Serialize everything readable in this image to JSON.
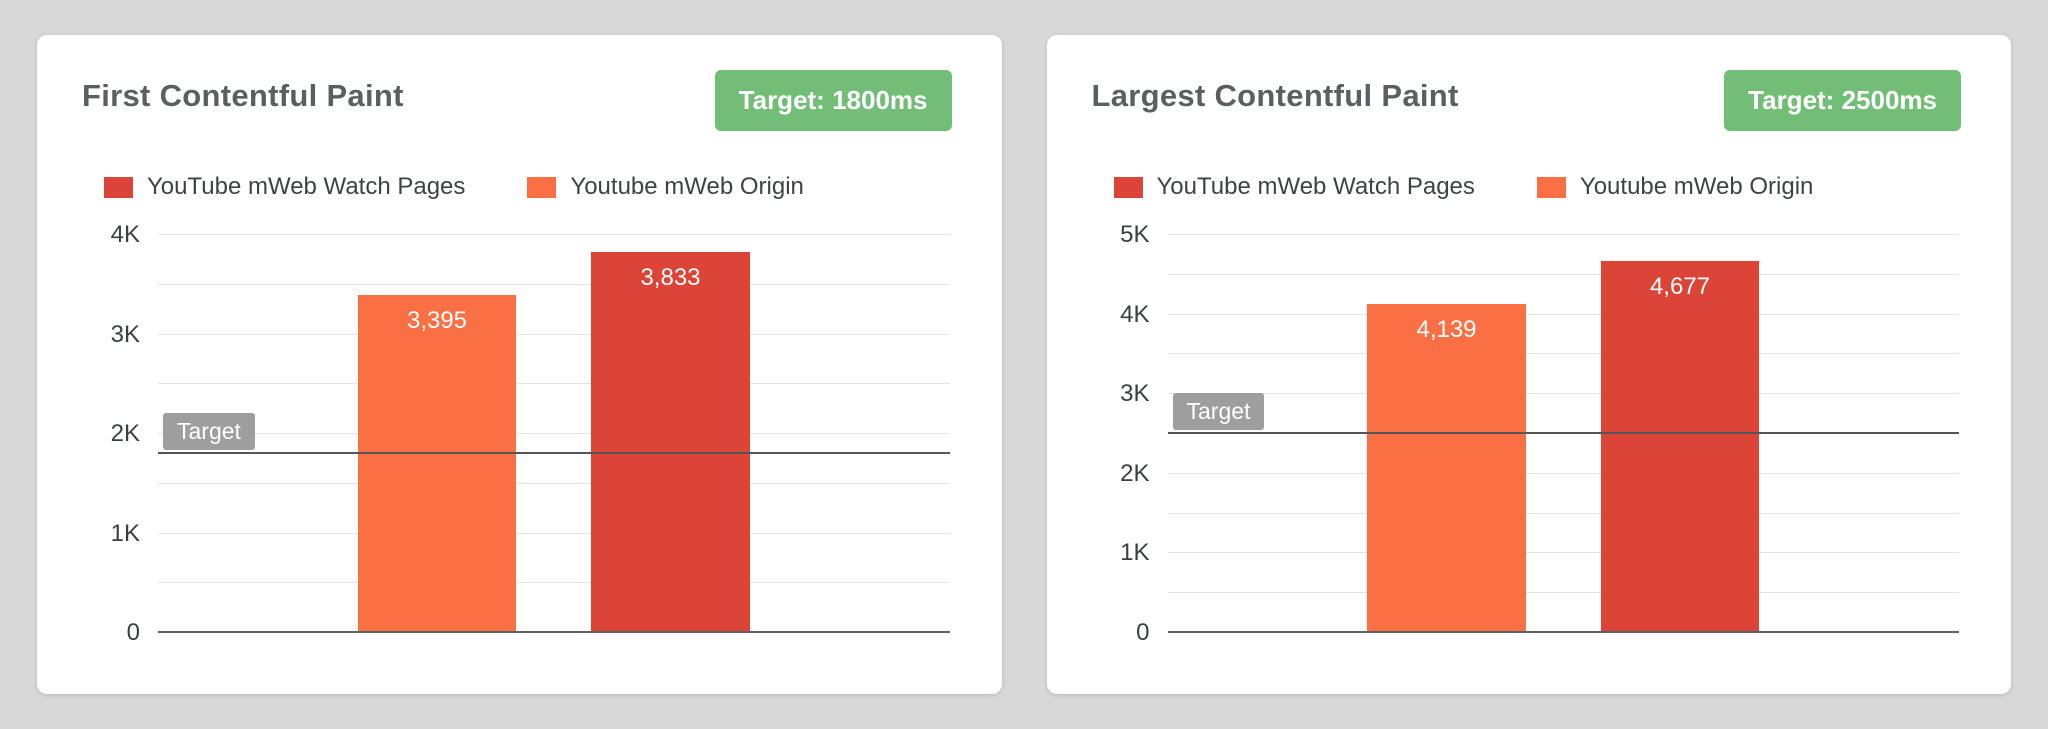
{
  "page": {
    "background": "#d8d8d8"
  },
  "colors": {
    "target_badge_bg": "#72be76",
    "target_badge_text": "#ffffff",
    "target_marker_bg": "#9e9e9e",
    "target_line": "#555555",
    "gridline": "#e3e3e3",
    "baseline": "#616161",
    "series_red": "#db4437",
    "series_orange": "#fa7044"
  },
  "chart_data": [
    {
      "type": "bar",
      "title": "First Contentful Paint",
      "target_badge": "Target: 1800ms",
      "target_line": {
        "value": 1800,
        "label": "Target"
      },
      "legend": [
        {
          "name": "YouTube mWeb Watch Pages",
          "color": "#db4437"
        },
        {
          "name": "Youtube mWeb Origin",
          "color": "#fa7044"
        }
      ],
      "bars": [
        {
          "series": "Youtube mWeb Origin",
          "value": 3395,
          "label": "3,395",
          "color": "#fa7044"
        },
        {
          "series": "YouTube mWeb Watch Pages",
          "value": 3833,
          "label": "3,833",
          "color": "#db4437"
        }
      ],
      "xlabel": "",
      "ylabel": "",
      "ylim": [
        0,
        4000
      ],
      "minor_grid_step": 500,
      "yticks": [
        {
          "value": 0,
          "label": "0"
        },
        {
          "value": 1000,
          "label": "1K"
        },
        {
          "value": 2000,
          "label": "2K"
        },
        {
          "value": 3000,
          "label": "3K"
        },
        {
          "value": 4000,
          "label": "4K"
        }
      ]
    },
    {
      "type": "bar",
      "title": "Largest Contentful Paint",
      "target_badge": "Target: 2500ms",
      "target_line": {
        "value": 2500,
        "label": "Target"
      },
      "legend": [
        {
          "name": "YouTube mWeb Watch Pages",
          "color": "#db4437"
        },
        {
          "name": "Youtube mWeb Origin",
          "color": "#fa7044"
        }
      ],
      "bars": [
        {
          "series": "Youtube mWeb Origin",
          "value": 4139,
          "label": "4,139",
          "color": "#fa7044"
        },
        {
          "series": "YouTube mWeb Watch Pages",
          "value": 4677,
          "label": "4,677",
          "color": "#db4437"
        }
      ],
      "xlabel": "",
      "ylabel": "",
      "ylim": [
        0,
        5000
      ],
      "minor_grid_step": 500,
      "yticks": [
        {
          "value": 0,
          "label": "0"
        },
        {
          "value": 1000,
          "label": "1K"
        },
        {
          "value": 2000,
          "label": "2K"
        },
        {
          "value": 3000,
          "label": "3K"
        },
        {
          "value": 4000,
          "label": "4K"
        },
        {
          "value": 5000,
          "label": "5K"
        }
      ]
    }
  ]
}
